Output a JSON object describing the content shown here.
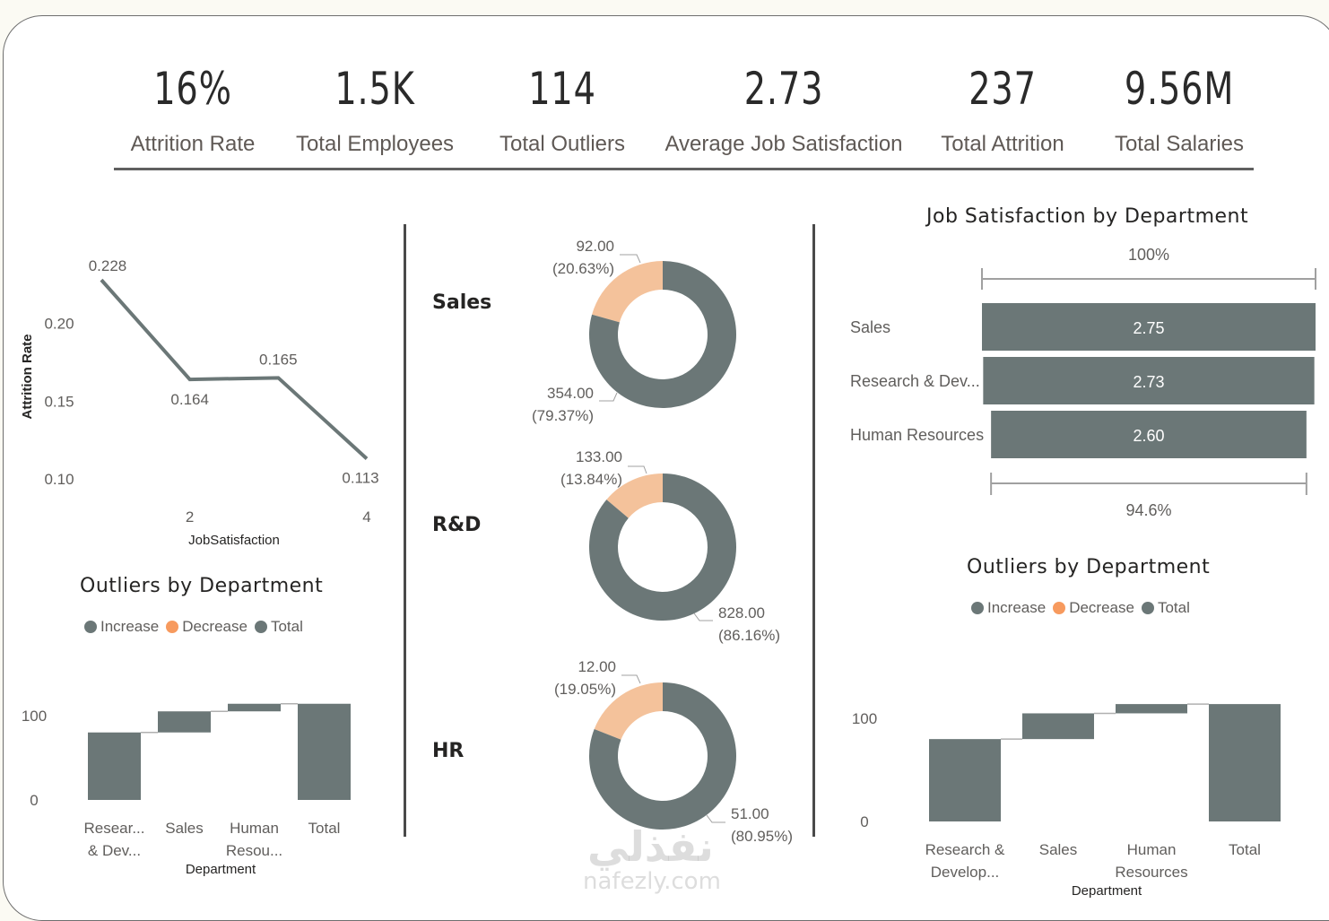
{
  "colors": {
    "primary": "#6b7777",
    "accent": "#f4c29b",
    "decrease_legend": "#f79a5e",
    "text_dark": "#252423",
    "text_muted": "#605e5c"
  },
  "kpis": [
    {
      "value": "16%",
      "label": "Attrition Rate"
    },
    {
      "value": "1.5K",
      "label": "Total Employees"
    },
    {
      "value": "114",
      "label": "Total Outliers"
    },
    {
      "value": "2.73",
      "label": "Average Job Satisfaction"
    },
    {
      "value": "237",
      "label": "Total Attrition"
    },
    {
      "value": "9.56M",
      "label": "Total Salaries"
    }
  ],
  "donut_labels": {
    "sales": "Sales",
    "rnd": "R&D",
    "hr": "HR"
  },
  "watermark": {
    "arabic": "نفذلي",
    "latin": "nafezly.com"
  },
  "chart_data": [
    {
      "id": "attrition-line",
      "type": "line",
      "title": "",
      "xlabel": "JobSatisfaction",
      "ylabel": "Attrition Rate",
      "x": [
        1,
        2,
        3,
        4
      ],
      "values": [
        0.228,
        0.164,
        0.165,
        0.113
      ],
      "data_labels": [
        "0.228",
        "0.164",
        "0.165",
        "0.113"
      ],
      "x_ticks": [
        "2",
        "4"
      ],
      "y_ticks": [
        "0.10",
        "0.15",
        "0.20"
      ],
      "ylim": [
        0.085,
        0.235
      ],
      "grid": false
    },
    {
      "id": "donut-sales",
      "type": "pie",
      "title": "Sales",
      "slices": [
        {
          "value": 92.0,
          "label": "92.00",
          "pct": "(20.63%)",
          "color": "#f4c29b"
        },
        {
          "value": 354.0,
          "label": "354.00",
          "pct": "(79.37%)",
          "color": "#6b7777"
        }
      ]
    },
    {
      "id": "donut-rnd",
      "type": "pie",
      "title": "R&D",
      "slices": [
        {
          "value": 133.0,
          "label": "133.00",
          "pct": "(13.84%)",
          "color": "#f4c29b"
        },
        {
          "value": 828.0,
          "label": "828.00",
          "pct": "(86.16%)",
          "color": "#6b7777"
        }
      ]
    },
    {
      "id": "donut-hr",
      "type": "pie",
      "title": "HR",
      "slices": [
        {
          "value": 12.0,
          "label": "12.00",
          "pct": "(19.05%)",
          "color": "#f4c29b"
        },
        {
          "value": 51.0,
          "label": "51.00",
          "pct": "(80.95%)",
          "color": "#6b7777"
        }
      ]
    },
    {
      "id": "job-sat-funnel",
      "type": "bar",
      "title": "Job Satisfaction by Department",
      "categories": [
        "Sales",
        "Research & Dev...",
        "Human Resources"
      ],
      "values": [
        2.75,
        2.73,
        2.6
      ],
      "data_labels": [
        "2.75",
        "2.73",
        "2.60"
      ],
      "top_label": "100%",
      "bottom_label": "94.6%"
    },
    {
      "id": "outliers-waterfall-left",
      "type": "bar",
      "subtype": "waterfall",
      "title": "Outliers by Department",
      "legend": [
        {
          "name": "Increase",
          "color": "#6b7777"
        },
        {
          "name": "Decrease",
          "color": "#f79a5e"
        },
        {
          "name": "Total",
          "color": "#6b7777"
        }
      ],
      "legend_position": "top-center",
      "categories": [
        "Resear... & Dev...",
        "Sales",
        "Human Resou...",
        "Total"
      ],
      "category_lines": [
        [
          "Resear...",
          "& Dev..."
        ],
        [
          "Sales"
        ],
        [
          "Human",
          "Resou..."
        ],
        [
          "Total"
        ]
      ],
      "values": [
        80,
        25,
        9,
        114
      ],
      "kinds": [
        "increase",
        "increase",
        "increase",
        "total"
      ],
      "xlabel": "Department",
      "y_ticks": [
        "0",
        "100"
      ],
      "ylim": [
        0,
        135
      ]
    },
    {
      "id": "outliers-waterfall-right",
      "type": "bar",
      "subtype": "waterfall",
      "title": "Outliers by Department",
      "legend": [
        {
          "name": "Increase",
          "color": "#6b7777"
        },
        {
          "name": "Decrease",
          "color": "#f79a5e"
        },
        {
          "name": "Total",
          "color": "#6b7777"
        }
      ],
      "legend_position": "top-center",
      "categories": [
        "Research & Develop...",
        "Sales",
        "Human Resources",
        "Total"
      ],
      "category_lines": [
        [
          "Research &",
          "Develop..."
        ],
        [
          "Sales"
        ],
        [
          "Human",
          "Resources"
        ],
        [
          "Total"
        ]
      ],
      "values": [
        80,
        25,
        9,
        114
      ],
      "kinds": [
        "increase",
        "increase",
        "increase",
        "total"
      ],
      "xlabel": "Department",
      "y_ticks": [
        "0",
        "100"
      ],
      "ylim": [
        0,
        135
      ]
    }
  ]
}
